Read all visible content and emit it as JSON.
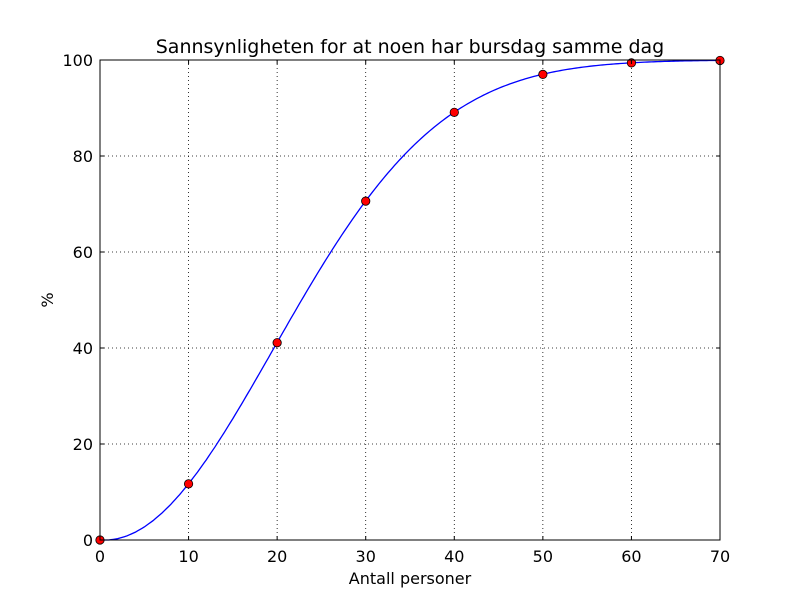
{
  "chart_data": {
    "type": "line",
    "title": "Sannsynligheten for at noen har bursdag samme dag",
    "xlabel": "Antall personer",
    "ylabel": "%",
    "xlim": [
      0,
      70
    ],
    "ylim": [
      0,
      100
    ],
    "xticks": [
      0,
      10,
      20,
      30,
      40,
      50,
      60,
      70
    ],
    "yticks": [
      0,
      20,
      40,
      60,
      80,
      100
    ],
    "grid": true,
    "series": [
      {
        "kind": "curve",
        "color": "#0000ff",
        "x_range": [
          0,
          70
        ],
        "formula": "100*(1 - prod_{k=0}^{n-1}(365-k)/365)"
      },
      {
        "kind": "markers",
        "color": "#ff0000",
        "x": [
          0,
          10,
          20,
          30,
          40,
          50,
          60,
          70
        ],
        "y": [
          0,
          11.7,
          41.1,
          70.6,
          89.1,
          97.0,
          99.4,
          99.9
        ]
      }
    ]
  }
}
